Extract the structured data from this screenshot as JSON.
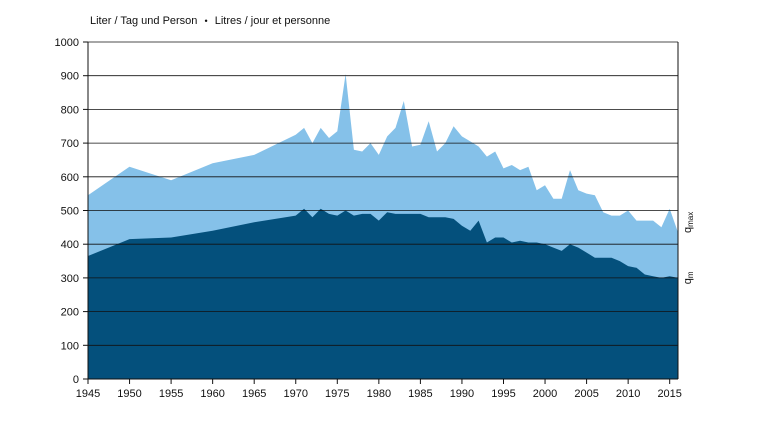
{
  "header": {
    "unit_de": "Liter / Tag und Person",
    "separator": "•",
    "unit_fr": "Litres / jour et personne"
  },
  "colors": {
    "qmax": "#85c1e9",
    "qm": "#04507c",
    "grid": "#111111"
  },
  "chart_data": {
    "type": "area",
    "xlim": [
      1945,
      2016
    ],
    "ylim": [
      0,
      1000
    ],
    "x_ticks": [
      1945,
      1950,
      1955,
      1960,
      1965,
      1970,
      1975,
      1980,
      1985,
      1990,
      1995,
      2000,
      2005,
      2010,
      2015
    ],
    "y_ticks": [
      0,
      100,
      200,
      300,
      400,
      500,
      600,
      700,
      800,
      900,
      1000
    ],
    "grid": "horizontal",
    "series": [
      {
        "name": "qmax",
        "label_main": "q",
        "label_sub": "max",
        "x": [
          1945,
          1950,
          1955,
          1960,
          1965,
          1970,
          1971,
          1972,
          1973,
          1974,
          1975,
          1976,
          1977,
          1978,
          1979,
          1980,
          1981,
          1982,
          1983,
          1984,
          1985,
          1986,
          1987,
          1988,
          1989,
          1990,
          1991,
          1992,
          1993,
          1994,
          1995,
          1996,
          1997,
          1998,
          1999,
          2000,
          2001,
          2002,
          2003,
          2004,
          2005,
          2006,
          2007,
          2008,
          2009,
          2010,
          2011,
          2012,
          2013,
          2014,
          2015,
          2016
        ],
        "values": [
          545,
          630,
          590,
          640,
          665,
          725,
          745,
          700,
          745,
          715,
          735,
          905,
          680,
          675,
          700,
          665,
          720,
          745,
          825,
          690,
          695,
          765,
          675,
          700,
          750,
          720,
          705,
          690,
          660,
          675,
          625,
          635,
          620,
          630,
          560,
          575,
          535,
          535,
          620,
          560,
          550,
          545,
          495,
          485,
          485,
          500,
          470,
          470,
          470,
          450,
          505,
          435
        ]
      },
      {
        "name": "qm",
        "label_main": "q",
        "label_sub": "m",
        "x": [
          1945,
          1950,
          1955,
          1960,
          1965,
          1970,
          1971,
          1972,
          1973,
          1974,
          1975,
          1976,
          1977,
          1978,
          1979,
          1980,
          1981,
          1982,
          1983,
          1984,
          1985,
          1986,
          1987,
          1988,
          1989,
          1990,
          1991,
          1992,
          1993,
          1994,
          1995,
          1996,
          1997,
          1998,
          1999,
          2000,
          2001,
          2002,
          2003,
          2004,
          2005,
          2006,
          2007,
          2008,
          2009,
          2010,
          2011,
          2012,
          2013,
          2014,
          2015,
          2016
        ],
        "values": [
          365,
          415,
          420,
          440,
          465,
          485,
          505,
          480,
          505,
          490,
          485,
          500,
          485,
          490,
          490,
          470,
          495,
          490,
          490,
          490,
          490,
          480,
          480,
          480,
          475,
          455,
          440,
          470,
          405,
          420,
          420,
          405,
          410,
          405,
          405,
          400,
          390,
          380,
          400,
          390,
          375,
          360,
          360,
          360,
          350,
          335,
          330,
          310,
          305,
          300,
          305,
          300
        ]
      }
    ]
  }
}
